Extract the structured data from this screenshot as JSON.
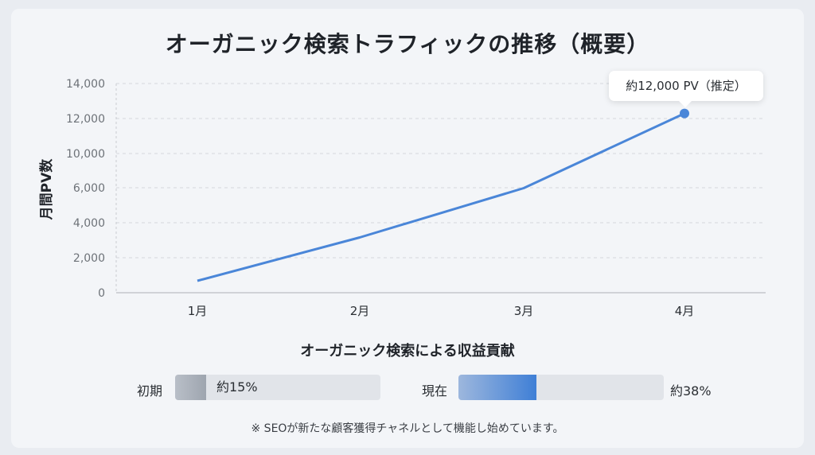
{
  "title": "オーガニック検索トラフィックの推移（概要）",
  "chart_data": {
    "type": "line",
    "title": "オーガニック検索トラフィックの推移（概要）",
    "xlabel": "",
    "ylabel": "月間PV数",
    "categories": [
      "1月",
      "2月",
      "3月",
      "4月"
    ],
    "series": [
      {
        "values": [
          800,
          3700,
          7000,
          12000
        ]
      }
    ],
    "yticks": [
      "0",
      "2,000",
      "4,000",
      "6,000",
      "10,000",
      "12,000",
      "14,000"
    ],
    "ylim": [
      0,
      14000
    ],
    "grid": true,
    "line_color": "#4a86d8",
    "annotation": "約12,000 PV（推定）"
  },
  "revenue": {
    "title": "オーガニック検索による収益貢献",
    "initial": {
      "label": "初期",
      "value_text": "約15%",
      "fraction": 0.15
    },
    "current": {
      "label": "現在",
      "value_text": "約38%",
      "fraction": 0.38
    }
  },
  "note": "※ SEOが新たな顧客獲得チャネルとして機能し始めています。"
}
